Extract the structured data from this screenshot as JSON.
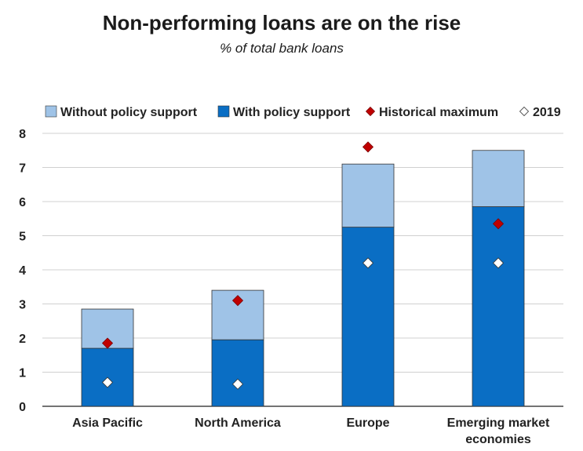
{
  "chart_data": {
    "type": "bar",
    "stacked": true,
    "title": "Non-performing loans are on the rise",
    "subtitle": "% of total bank loans",
    "categories": [
      [
        "Asia Pacific"
      ],
      [
        "North America"
      ],
      [
        "Europe"
      ],
      [
        "Emerging market",
        "economies"
      ]
    ],
    "series": [
      {
        "name": "With policy support",
        "values": [
          1.7,
          1.95,
          5.25,
          5.85
        ],
        "color": "#0a6ec4"
      },
      {
        "name": "Without policy support",
        "values": [
          1.15,
          1.45,
          1.85,
          1.65
        ],
        "color": "#9fc3e7"
      }
    ],
    "markers": [
      {
        "name": "Historical maximum",
        "values": [
          1.85,
          3.1,
          7.6,
          5.35
        ],
        "color": "#c00000"
      },
      {
        "name": "2019",
        "values": [
          0.7,
          0.65,
          4.2,
          4.2
        ],
        "color": "#ffffff"
      }
    ],
    "legend_order": [
      "Without policy support",
      "With policy support",
      "Historical maximum",
      "2019"
    ],
    "yticks": [
      "0",
      "1",
      "2",
      "3",
      "4",
      "5",
      "6",
      "7",
      "8"
    ],
    "ylim": [
      0,
      8
    ],
    "grid": true,
    "legend_position": "top"
  }
}
